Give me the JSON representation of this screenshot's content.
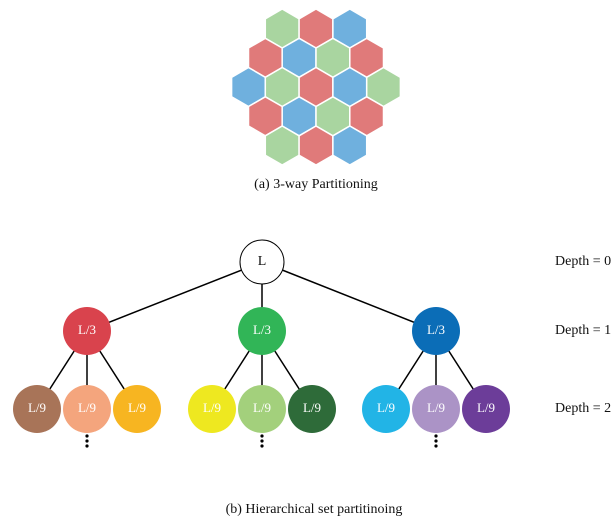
{
  "figure_a": {
    "caption": "(a) 3-way Partitioning"
  },
  "tree": {
    "root": {
      "label": "L"
    },
    "children": [
      {
        "label": "L/3",
        "color": "#d9434d",
        "children": [
          {
            "label": "L/9",
            "color": "#a87458"
          },
          {
            "label": "L/9",
            "color": "#f4a57d"
          },
          {
            "label": "L/9",
            "color": "#f7b521"
          }
        ]
      },
      {
        "label": "L/3",
        "color": "#31b557",
        "children": [
          {
            "label": "L/9",
            "color": "#eee820"
          },
          {
            "label": "L/9",
            "color": "#a3d07c"
          },
          {
            "label": "L/9",
            "color": "#2e6b39"
          }
        ]
      },
      {
        "label": "L/3",
        "color": "#0b6db7",
        "children": [
          {
            "label": "L/9",
            "color": "#22b4e6"
          },
          {
            "label": "L/9",
            "color": "#ab93c6"
          },
          {
            "label": "L/9",
            "color": "#6c3d99"
          }
        ]
      }
    ],
    "depths": [
      "Depth = 0",
      "Depth = 1",
      "Depth = 2"
    ]
  },
  "figure_b": {
    "caption": "(b) Hierarchical set partitinoing"
  }
}
